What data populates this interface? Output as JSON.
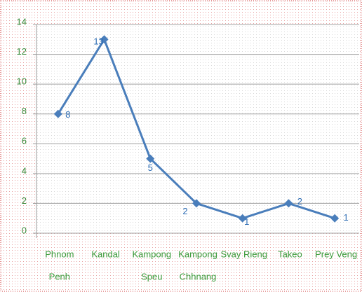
{
  "chart_data": {
    "type": "line",
    "categories": [
      [
        "Phnom",
        "Penh"
      ],
      [
        "Kandal"
      ],
      [
        "Kampong",
        "Speu"
      ],
      [
        "Kampong",
        "Chhnang"
      ],
      [
        "Svay Rieng"
      ],
      [
        "Takeo"
      ],
      [
        "Prey Veng"
      ]
    ],
    "values": [
      8,
      13,
      5,
      2,
      1,
      2,
      1
    ],
    "color": "#4a7ebb",
    "ylim": [
      0,
      14
    ],
    "yticks": [
      0,
      2,
      4,
      6,
      8,
      10,
      12,
      14
    ],
    "grid": true
  }
}
